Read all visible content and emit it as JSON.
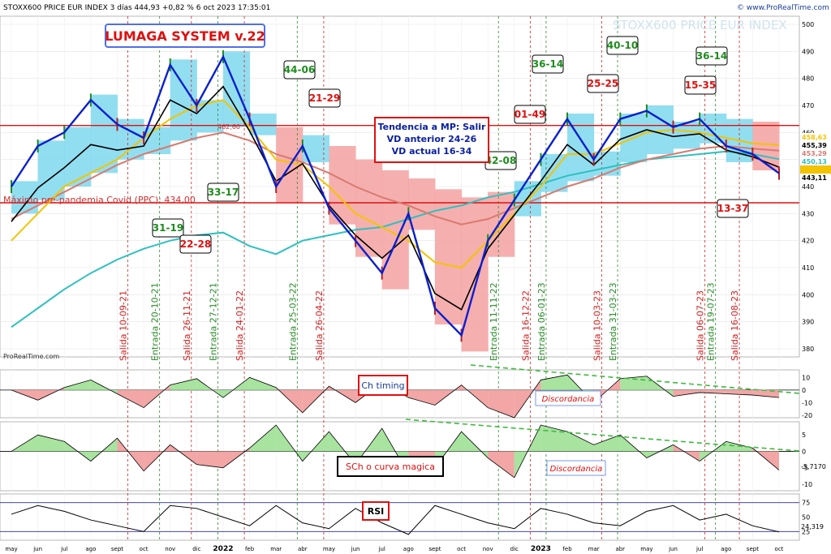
{
  "header": {
    "instrument": "STOXX600 PRICE EUR INDEX 3 días 444,93 +0,82 % 6 oct 2023 17:35:01",
    "watermark_site": "© www.ProRealTime.com",
    "watermark_title": "STOXX600 PRICE EUR INDEX",
    "source": "ProRealTime.com"
  },
  "colors": {
    "price_up": "#1e8c1e",
    "price_down": "#b22222",
    "smooth": "#0a1fcf",
    "ma_black": "#000000",
    "ma_yellow": "#f2c400",
    "ma_red": "#d87a70",
    "ma_cyan": "#2fc0c0",
    "cloud_bull": "#7fd8ee",
    "cloud_bear": "#f4a1a1",
    "entry_line": "#2a8a2a",
    "exit_line": "#d22020"
  },
  "system_title": "LUMAGA SYSTEM v.22",
  "trend_box": [
    "Tendencia a MP: Salir",
    "VD anterior 24-26",
    "VD actual 16-34"
  ],
  "level_label": "Máximo pre-pandemia Covid (PPC): 434,00",
  "chart_data": [
    {
      "type": "line",
      "panel": "price",
      "ylim": [
        377,
        503
      ],
      "y_ticks": [
        380,
        390,
        400,
        410,
        420,
        430,
        440,
        450,
        460,
        470,
        480,
        490,
        500
      ],
      "x_months": [
        "may",
        "jun",
        "jul",
        "ago",
        "sept",
        "oct",
        "nov",
        "dic",
        "2022",
        "feb",
        "mar",
        "abr",
        "may",
        "jun",
        "jul",
        "ago",
        "sept",
        "oct",
        "nov",
        "dic",
        "2023",
        "feb",
        "mar",
        "abr",
        "may",
        "jun",
        "jul",
        "ago",
        "sept",
        "oct"
      ],
      "horizontal_levels": [
        {
          "value": 462.6,
          "label": "462,60"
        },
        {
          "value": 434.0,
          "label": "434,00"
        }
      ],
      "right_labels": [
        "458,63",
        "455,39",
        "453,29",
        "450,13",
        "444,93",
        "443,11"
      ],
      "series": [
        {
          "role": "price",
          "x": [
            "2021-05",
            "2021-06",
            "2021-07",
            "2021-08",
            "2021-09",
            "2021-10",
            "2021-11",
            "2021-12",
            "2022-01",
            "2022-02",
            "2022-03",
            "2022-04",
            "2022-05",
            "2022-06",
            "2022-07",
            "2022-08",
            "2022-09",
            "2022-10",
            "2022-11",
            "2022-12",
            "2023-01",
            "2023-02",
            "2023-03",
            "2023-04",
            "2023-05",
            "2023-06",
            "2023-07",
            "2023-08",
            "2023-09",
            "2023-10"
          ],
          "values": [
            440,
            455,
            460,
            472,
            463,
            458,
            485,
            470,
            488,
            465,
            440,
            455,
            432,
            420,
            408,
            430,
            395,
            385,
            420,
            435,
            450,
            465,
            450,
            465,
            468,
            462,
            465,
            455,
            452,
            444.93
          ]
        },
        {
          "role": "ma_long",
          "values": [
            388,
            395,
            402,
            408,
            413,
            417,
            420,
            422,
            423,
            418,
            415,
            420,
            422,
            424,
            425,
            428,
            431,
            433,
            436,
            438,
            441,
            444,
            446,
            448,
            450,
            451,
            452,
            453,
            452,
            450.13
          ]
        },
        {
          "role": "ma_mid",
          "values": [
            428,
            433,
            438,
            443,
            448,
            452,
            455,
            458,
            460,
            457,
            452,
            449,
            445,
            440,
            436,
            433,
            429,
            426,
            428,
            432,
            436,
            440,
            443,
            447,
            450,
            452,
            454,
            455,
            454,
            453.29
          ]
        },
        {
          "role": "ma_fast",
          "values": [
            420,
            430,
            440,
            445,
            450,
            458,
            465,
            470,
            472,
            462,
            450,
            448,
            440,
            430,
            425,
            420,
            412,
            410,
            420,
            430,
            440,
            452,
            452,
            456,
            460,
            461,
            460,
            458,
            456,
            455.39
          ]
        }
      ],
      "signals": [
        {
          "label": "31-19",
          "color": "green"
        },
        {
          "label": "22-28",
          "color": "red"
        },
        {
          "label": "33-17",
          "color": "green"
        },
        {
          "label": "44-06",
          "color": "green"
        },
        {
          "label": "21-29",
          "color": "red"
        },
        {
          "label": "42-08",
          "color": "green"
        },
        {
          "label": "01-49",
          "color": "red"
        },
        {
          "label": "36-14",
          "color": "green"
        },
        {
          "label": "25-25",
          "color": "red"
        },
        {
          "label": "40-10",
          "color": "green"
        },
        {
          "label": "36-14",
          "color": "green"
        },
        {
          "label": "15-35",
          "color": "red"
        },
        {
          "label": "13-37",
          "color": "red"
        }
      ],
      "markers": [
        {
          "label": "Salida 10-09-21",
          "kind": "exit"
        },
        {
          "label": "Entrada 20-10-21",
          "kind": "entry"
        },
        {
          "label": "Salida 26-11-21",
          "kind": "exit"
        },
        {
          "label": "Entrada 27-12-21",
          "kind": "entry"
        },
        {
          "label": "Salida 24-01-22",
          "kind": "exit"
        },
        {
          "label": "Entrada 25-03-22",
          "kind": "entry"
        },
        {
          "label": "Salida 16-12-22",
          "kind": "exit"
        },
        {
          "label": "Entrada 11-11-22",
          "kind": "entry"
        },
        {
          "label": "Salida 26-04-22",
          "kind": "exit"
        },
        {
          "label": "Entrada 06-01-23",
          "kind": "entry"
        },
        {
          "label": "Salida 10-03-23",
          "kind": "exit"
        },
        {
          "label": "Entrada 31-03-23",
          "kind": "entry"
        },
        {
          "label": "Salida 06-07-23",
          "kind": "exit"
        },
        {
          "label": "Entrada 19-07-23",
          "kind": "entry"
        },
        {
          "label": "Salida 16-08-23",
          "kind": "exit"
        }
      ]
    },
    {
      "type": "area",
      "panel": "ch_timing",
      "label": "Ch timing",
      "ylim": [
        -22,
        16
      ],
      "y_ticks": [
        10,
        0,
        -10,
        -20
      ],
      "annotation": "Discordancia",
      "values": [
        0,
        -8,
        2,
        8,
        -3,
        -14,
        4,
        9,
        -6,
        10,
        2,
        -18,
        3,
        -10,
        6,
        -6,
        -12,
        4,
        -14,
        -22,
        8,
        12,
        -10,
        9,
        11,
        -5,
        -2,
        -3,
        -4,
        -6
      ]
    },
    {
      "type": "area",
      "panel": "sch",
      "label": "SCh o curva magica",
      "ylim": [
        -12,
        9
      ],
      "y_ticks": [
        5,
        0,
        -5,
        -10
      ],
      "annotation": "Discordancia",
      "last_value": "-5,7170",
      "values": [
        0,
        5,
        3,
        -3,
        4,
        -6,
        2,
        -4,
        -5,
        1,
        8,
        -3,
        6,
        -4,
        7,
        -7,
        -5,
        6,
        -2,
        -8,
        8,
        6,
        2,
        5,
        -2,
        2,
        -3,
        3,
        1,
        -5.717
      ]
    },
    {
      "type": "line",
      "panel": "rsi",
      "label": "RSI",
      "ylim": [
        10,
        90
      ],
      "y_ticks": [
        75,
        50,
        25
      ],
      "last_value": "24,319",
      "values": [
        55,
        70,
        60,
        45,
        35,
        25,
        70,
        65,
        50,
        35,
        70,
        40,
        30,
        65,
        40,
        20,
        70,
        55,
        40,
        30,
        65,
        55,
        40,
        35,
        60,
        70,
        45,
        55,
        35,
        24.319
      ]
    }
  ]
}
